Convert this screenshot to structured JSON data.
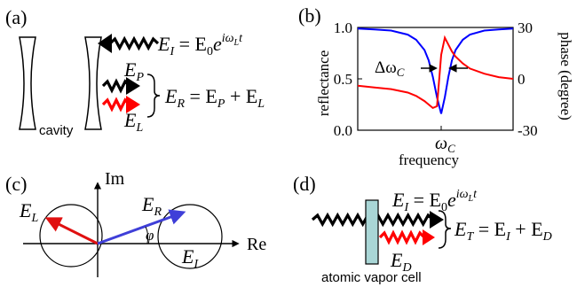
{
  "panels": {
    "a": {
      "label": "(a)",
      "cavity_label": "cavity",
      "EI_lhs": "E",
      "EI_lhs_sub": "I",
      "EI_rhs": "= E",
      "EI_rhs_sub": "0",
      "EI_rhs_e": "e",
      "EI_rhs_exp": "iω",
      "EI_rhs_exp_sub": "L",
      "EI_rhs_exp_t": "t",
      "EP": "E",
      "EP_sub": "P",
      "EL": "E",
      "EL_sub": "L",
      "ER_lhs": "E",
      "ER_lhs_sub": "R",
      "ER_eq": "= E",
      "ER_P_sub": "P",
      "ER_plus": "+ E",
      "ER_L_sub": "L",
      "colors": {
        "wave_black": "#000000",
        "wave_red": "#ff0000"
      }
    },
    "b": {
      "label": "(b)",
      "ylabel_left": "reflectance",
      "ylabel_right": "phase (degree)",
      "xlabel": "frequency",
      "x_tick": "ω",
      "x_tick_sub": "C",
      "delta": "Δω",
      "delta_sub": "C",
      "left_ticks": [
        "1.0",
        "0.5",
        "0.0"
      ],
      "right_ticks": [
        "30",
        "0",
        "-30"
      ],
      "colors": {
        "reflectance": "#0000ff",
        "phase": "#ff0000"
      }
    },
    "c": {
      "label": "(c)",
      "im": "Im",
      "re": "Re",
      "ER": "E",
      "ER_sub": "R",
      "EL": "E",
      "EL_sub": "L",
      "EI": "E",
      "EI_sub": "I",
      "phi": "φ",
      "colors": {
        "ER_arrow": "#3f3fd8",
        "EL_arrow": "#e01010"
      }
    },
    "d": {
      "label": "(d)",
      "EI_lhs": "E",
      "EI_lhs_sub": "I",
      "EI_rhs": "= E",
      "EI_rhs_sub": "0",
      "EI_rhs_e": "e",
      "EI_rhs_exp": "iω",
      "EI_rhs_exp_sub": "L",
      "EI_rhs_exp_t": "t",
      "ED": "E",
      "ED_sub": "D",
      "ET_lhs": "E",
      "ET_lhs_sub": "T",
      "ET_eq": "= E",
      "ET_I_sub": "I",
      "ET_plus": "+ E",
      "ET_D_sub": "D",
      "cell_label": "atomic vapor cell",
      "colors": {
        "cell_fill": "#a9d6d6"
      }
    }
  },
  "chart_data": {
    "type": "line",
    "xlabel": "frequency",
    "x_tick_labels": [
      "ω_C"
    ],
    "ylabel_left": "reflectance",
    "ylabel_right": "phase (degree)",
    "ylim_left": [
      0.0,
      1.0
    ],
    "ylim_right": [
      -30,
      30
    ],
    "x": [
      -1.0,
      -0.8,
      -0.6,
      -0.4,
      -0.3,
      -0.2,
      -0.15,
      -0.1,
      -0.05,
      0.0,
      0.05,
      0.1,
      0.15,
      0.2,
      0.3,
      0.4,
      0.6,
      0.8,
      1.0
    ],
    "series": [
      {
        "axis": "left",
        "color": "#0000ff",
        "values": [
          0.99,
          0.98,
          0.97,
          0.93,
          0.88,
          0.78,
          0.68,
          0.52,
          0.32,
          0.16,
          0.32,
          0.52,
          0.68,
          0.78,
          0.88,
          0.93,
          0.97,
          0.98,
          0.99
        ]
      },
      {
        "axis": "right",
        "color": "#ff0000",
        "values": [
          -4,
          -5,
          -6,
          -8,
          -10,
          -13,
          -15,
          -17,
          -16,
          14,
          24,
          20,
          16,
          13,
          9,
          6,
          3,
          1,
          0
        ]
      }
    ]
  }
}
